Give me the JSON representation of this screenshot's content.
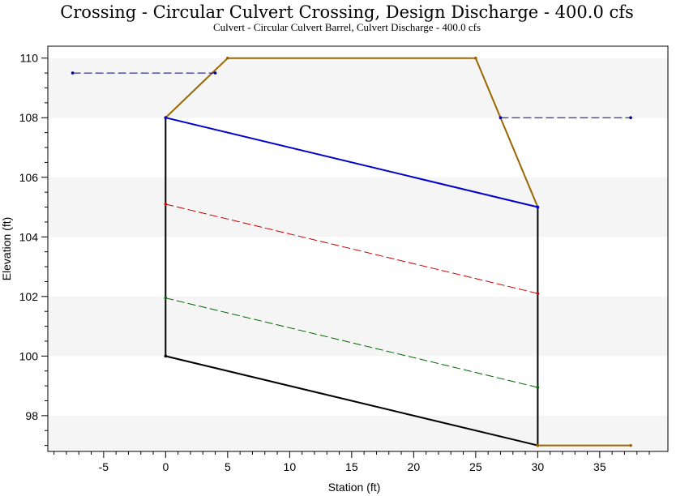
{
  "chart_data": {
    "type": "line",
    "title": "Crossing - Circular Culvert Crossing, Design Discharge - 400.0 cfs",
    "subtitle": "Culvert - Circular Culvert Barrel, Culvert Discharge - 400.0 cfs",
    "xlabel": "Station (ft)",
    "ylabel": "Elevation (ft)",
    "xlim": [
      -9.5,
      40.5
    ],
    "ylim": [
      96.8,
      110.4
    ],
    "xticks": [
      -5,
      0,
      5,
      10,
      15,
      20,
      25,
      30,
      35
    ],
    "yticks": [
      98,
      100,
      102,
      104,
      106,
      108,
      110
    ],
    "grid": "alternating horizontal bands",
    "legend": "none",
    "series": [
      {
        "color": "#000000",
        "style": "solid",
        "x": [
          0,
          0,
          30,
          30
        ],
        "y": [
          108,
          100,
          97,
          105
        ]
      },
      {
        "color": "#996600",
        "style": "solid",
        "x": [
          0,
          5,
          25,
          30
        ],
        "y": [
          108,
          110,
          110,
          105
        ]
      },
      {
        "color": "#996600",
        "style": "solid",
        "x": [
          30,
          37.5
        ],
        "y": [
          97,
          97
        ]
      },
      {
        "color": "#0000cc",
        "style": "solid",
        "x": [
          0,
          30
        ],
        "y": [
          108,
          105
        ]
      },
      {
        "color": "#cc0000",
        "style": "dashed",
        "x": [
          0,
          30
        ],
        "y": [
          105.1,
          102.1
        ]
      },
      {
        "color": "#006600",
        "style": "dashed",
        "x": [
          0,
          30
        ],
        "y": [
          101.95,
          98.95
        ]
      },
      {
        "color": "#00008b",
        "style": "dashed",
        "x": [
          -7.5,
          4
        ],
        "y": [
          109.5,
          109.5
        ]
      },
      {
        "color": "#00008b",
        "style": "dashed",
        "x": [
          27,
          37.5
        ],
        "y": [
          108,
          108
        ]
      }
    ]
  }
}
